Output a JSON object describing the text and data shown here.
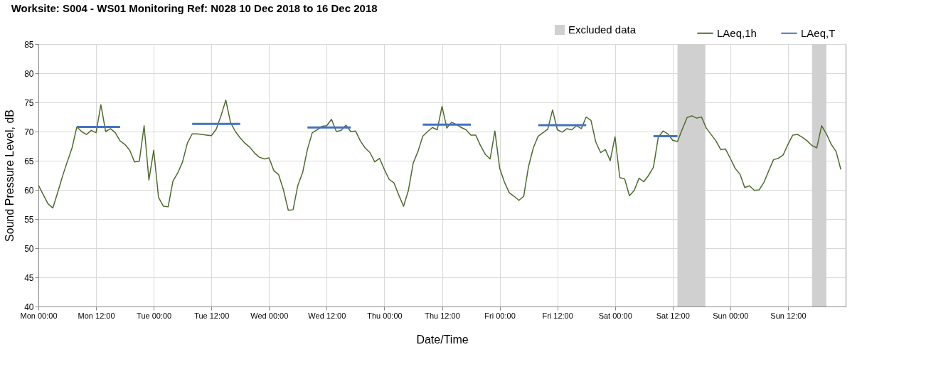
{
  "chart_data": {
    "type": "line",
    "title": "Worksite: S004 - WS01    Monitoring Ref: N028      10 Dec 2018 to 16 Dec 2018",
    "xlabel": "Date/Time",
    "ylabel": "Sound Pressure Level, dB",
    "xlim": [
      "2018-12-10T00:00",
      "2018-12-17T00:00"
    ],
    "ylim": [
      40,
      85
    ],
    "xticks": [
      {
        "value": "2018-12-10T00:00",
        "label": "Mon 00:00"
      },
      {
        "value": "2018-12-10T12:00",
        "label": "Mon 12:00"
      },
      {
        "value": "2018-12-11T00:00",
        "label": "Tue 00:00"
      },
      {
        "value": "2018-12-11T12:00",
        "label": "Tue 12:00"
      },
      {
        "value": "2018-12-12T00:00",
        "label": "Wed 00:00"
      },
      {
        "value": "2018-12-12T12:00",
        "label": "Wed 12:00"
      },
      {
        "value": "2018-12-13T00:00",
        "label": "Thu 00:00"
      },
      {
        "value": "2018-12-13T12:00",
        "label": "Thu 12:00"
      },
      {
        "value": "2018-12-14T00:00",
        "label": "Fri 00:00"
      },
      {
        "value": "2018-12-14T12:00",
        "label": "Fri 12:00"
      },
      {
        "value": "2018-12-15T00:00",
        "label": "Sat 00:00"
      },
      {
        "value": "2018-12-15T12:00",
        "label": "Sat 12:00"
      },
      {
        "value": "2018-12-16T00:00",
        "label": "Sun 00:00"
      },
      {
        "value": "2018-12-16T12:00",
        "label": "Sun 12:00"
      }
    ],
    "yticks": [
      40,
      45,
      50,
      55,
      60,
      65,
      70,
      75,
      80,
      85
    ],
    "grid": true,
    "legend": "top right",
    "marker": "none",
    "line_style": "solid",
    "bands": [
      {
        "axis": "x",
        "from": "2018-12-15T13:00",
        "to": "2018-12-15T18:48",
        "label": "Excluded data",
        "color": "#d0d0d0"
      },
      {
        "axis": "x",
        "from": "2018-12-16T17:00",
        "to": "2018-12-16T20:00",
        "color": "#d0d0d0"
      }
    ],
    "series": [
      {
        "name": "LAeq,1h",
        "color": "#4e6b2f",
        "x": [
          "2018-12-10T00:00",
          "2018-12-10T01:00",
          "2018-12-10T02:00",
          "2018-12-10T03:00",
          "2018-12-10T04:00",
          "2018-12-10T05:00",
          "2018-12-10T06:00",
          "2018-12-10T07:00",
          "2018-12-10T08:00",
          "2018-12-10T09:00",
          "2018-12-10T10:00",
          "2018-12-10T11:00",
          "2018-12-10T12:00",
          "2018-12-10T13:00",
          "2018-12-10T14:00",
          "2018-12-10T15:00",
          "2018-12-10T16:00",
          "2018-12-10T17:00",
          "2018-12-10T18:00",
          "2018-12-10T19:00",
          "2018-12-10T20:00",
          "2018-12-10T21:00",
          "2018-12-10T22:00",
          "2018-12-10T23:00",
          "2018-12-11T00:00",
          "2018-12-11T01:00",
          "2018-12-11T02:00",
          "2018-12-11T03:00",
          "2018-12-11T04:00",
          "2018-12-11T05:00",
          "2018-12-11T06:00",
          "2018-12-11T07:00",
          "2018-12-11T08:00",
          "2018-12-11T09:00",
          "2018-12-11T10:00",
          "2018-12-11T11:00",
          "2018-12-11T12:00",
          "2018-12-11T13:00",
          "2018-12-11T14:00",
          "2018-12-11T15:00",
          "2018-12-11T16:00",
          "2018-12-11T17:00",
          "2018-12-11T18:00",
          "2018-12-11T19:00",
          "2018-12-11T20:00",
          "2018-12-11T21:00",
          "2018-12-11T22:00",
          "2018-12-11T23:00",
          "2018-12-12T00:00",
          "2018-12-12T01:00",
          "2018-12-12T02:00",
          "2018-12-12T03:00",
          "2018-12-12T04:00",
          "2018-12-12T05:00",
          "2018-12-12T06:00",
          "2018-12-12T07:00",
          "2018-12-12T08:00",
          "2018-12-12T09:00",
          "2018-12-12T10:00",
          "2018-12-12T11:00",
          "2018-12-12T12:00",
          "2018-12-12T13:00",
          "2018-12-12T14:00",
          "2018-12-12T15:00",
          "2018-12-12T16:00",
          "2018-12-12T17:00",
          "2018-12-12T18:00",
          "2018-12-12T19:00",
          "2018-12-12T20:00",
          "2018-12-12T21:00",
          "2018-12-12T22:00",
          "2018-12-12T23:00",
          "2018-12-13T00:00",
          "2018-12-13T01:00",
          "2018-12-13T02:00",
          "2018-12-13T03:00",
          "2018-12-13T04:00",
          "2018-12-13T05:00",
          "2018-12-13T06:00",
          "2018-12-13T07:00",
          "2018-12-13T08:00",
          "2018-12-13T09:00",
          "2018-12-13T10:00",
          "2018-12-13T11:00",
          "2018-12-13T12:00",
          "2018-12-13T13:00",
          "2018-12-13T14:00",
          "2018-12-13T15:00",
          "2018-12-13T16:00",
          "2018-12-13T17:00",
          "2018-12-13T18:00",
          "2018-12-13T19:00",
          "2018-12-13T20:00",
          "2018-12-13T21:00",
          "2018-12-13T22:00",
          "2018-12-13T23:00",
          "2018-12-14T00:00",
          "2018-12-14T01:00",
          "2018-12-14T02:00",
          "2018-12-14T03:00",
          "2018-12-14T04:00",
          "2018-12-14T05:00",
          "2018-12-14T06:00",
          "2018-12-14T07:00",
          "2018-12-14T08:00",
          "2018-12-14T09:00",
          "2018-12-14T10:00",
          "2018-12-14T11:00",
          "2018-12-14T12:00",
          "2018-12-14T13:00",
          "2018-12-14T14:00",
          "2018-12-14T15:00",
          "2018-12-14T16:00",
          "2018-12-14T17:00",
          "2018-12-14T18:00",
          "2018-12-14T19:00",
          "2018-12-14T20:00",
          "2018-12-14T21:00",
          "2018-12-14T22:00",
          "2018-12-14T23:00",
          "2018-12-15T00:00",
          "2018-12-15T01:00",
          "2018-12-15T02:00",
          "2018-12-15T03:00",
          "2018-12-15T04:00",
          "2018-12-15T05:00",
          "2018-12-15T06:00",
          "2018-12-15T07:00",
          "2018-12-15T08:00",
          "2018-12-15T09:00",
          "2018-12-15T10:00",
          "2018-12-15T11:00",
          "2018-12-15T12:00",
          "2018-12-15T13:00",
          "2018-12-15T14:00",
          "2018-12-15T15:00",
          "2018-12-15T16:00",
          "2018-12-15T17:00",
          "2018-12-15T18:00",
          "2018-12-15T19:00",
          "2018-12-15T20:00",
          "2018-12-15T21:00",
          "2018-12-15T22:00",
          "2018-12-15T23:00",
          "2018-12-16T00:00",
          "2018-12-16T01:00",
          "2018-12-16T02:00",
          "2018-12-16T03:00",
          "2018-12-16T04:00",
          "2018-12-16T05:00",
          "2018-12-16T06:00",
          "2018-12-16T07:00",
          "2018-12-16T08:00",
          "2018-12-16T09:00",
          "2018-12-16T10:00",
          "2018-12-16T11:00",
          "2018-12-16T12:00",
          "2018-12-16T13:00",
          "2018-12-16T14:00",
          "2018-12-16T15:00",
          "2018-12-16T16:00",
          "2018-12-16T17:00",
          "2018-12-16T18:00",
          "2018-12-16T19:00",
          "2018-12-16T20:00",
          "2018-12-16T21:00",
          "2018-12-16T22:00",
          "2018-12-16T23:00"
        ],
        "values": [
          60.8,
          59.2,
          57.6,
          56.9,
          59.5,
          62.3,
          64.8,
          67.2,
          70.8,
          70,
          69.5,
          70.2,
          69.8,
          74.6,
          70,
          70.5,
          69.8,
          68.4,
          67.8,
          66.8,
          64.8,
          64.9,
          71,
          61.7,
          66.8,
          58.7,
          57.2,
          57.1,
          61.5,
          62.9,
          64.8,
          68,
          69.6,
          69.6,
          69.5,
          69.4,
          69.3,
          70.4,
          72.7,
          75.4,
          71.5,
          70,
          68.9,
          68,
          67.3,
          66.3,
          65.6,
          65.3,
          65.5,
          63.3,
          62.6,
          60,
          56.5,
          56.6,
          60.8,
          63,
          67,
          69.8,
          70.3,
          70.9,
          71,
          72.1,
          70,
          70.2,
          71.1,
          70,
          70.1,
          68.4,
          67.2,
          66.4,
          64.8,
          65.4,
          63.5,
          61.8,
          61.2,
          59.1,
          57.2,
          59.9,
          64.6,
          66.6,
          69.2,
          70,
          70.7,
          70.3,
          74.3,
          70.6,
          71.6,
          71.2,
          70.7,
          70.3,
          69.4,
          69.4,
          67.6,
          66.1,
          65.3,
          70.1,
          63.7,
          61.3,
          59.5,
          58.9,
          58.2,
          58.9,
          64,
          67.2,
          69.2,
          69.8,
          70.4,
          73.7,
          70.3,
          69.9,
          70.5,
          70.3,
          71,
          70.5,
          72.5,
          71.9,
          68.2,
          66.4,
          66.9,
          65,
          69.1,
          62.1,
          61.9,
          59,
          59.9,
          62,
          61.4,
          62.5,
          63.9,
          69,
          70.1,
          69.6,
          68.5,
          68.3,
          70.4,
          72.4,
          72.7,
          72.3,
          72.5,
          70.6,
          69.5,
          68.4,
          66.9,
          67,
          65.4,
          63.7,
          62.7,
          60.4,
          60.7,
          59.9,
          60,
          61.3,
          63.3,
          65.2,
          65.4,
          66,
          67.8,
          69.4,
          69.5,
          69,
          68.4,
          67.6,
          67.2,
          71,
          69.6,
          67.8,
          66.6,
          63.5
        ]
      },
      {
        "name": "LAeq,T",
        "color": "#4472c4",
        "x": [
          "2018-12-10T08:00",
          "2018-12-10T17:00"
        ],
        "values": [
          70.8,
          70.8
        ]
      },
      {
        "color": "#4472c4",
        "x": [
          "2018-12-11T08:00",
          "2018-12-11T18:00"
        ],
        "values": [
          71.3,
          71.3
        ]
      },
      {
        "color": "#4472c4",
        "x": [
          "2018-12-12T08:00",
          "2018-12-12T17:00"
        ],
        "values": [
          70.7,
          70.7
        ]
      },
      {
        "color": "#4472c4",
        "x": [
          "2018-12-13T08:00",
          "2018-12-13T18:00"
        ],
        "values": [
          71.2,
          71.2
        ]
      },
      {
        "color": "#4472c4",
        "x": [
          "2018-12-14T08:00",
          "2018-12-14T18:00"
        ],
        "values": [
          71.1,
          71.1
        ]
      },
      {
        "color": "#4472c4",
        "x": [
          "2018-12-15T08:00",
          "2018-12-15T13:00"
        ],
        "values": [
          69.2,
          69.2
        ]
      }
    ]
  }
}
